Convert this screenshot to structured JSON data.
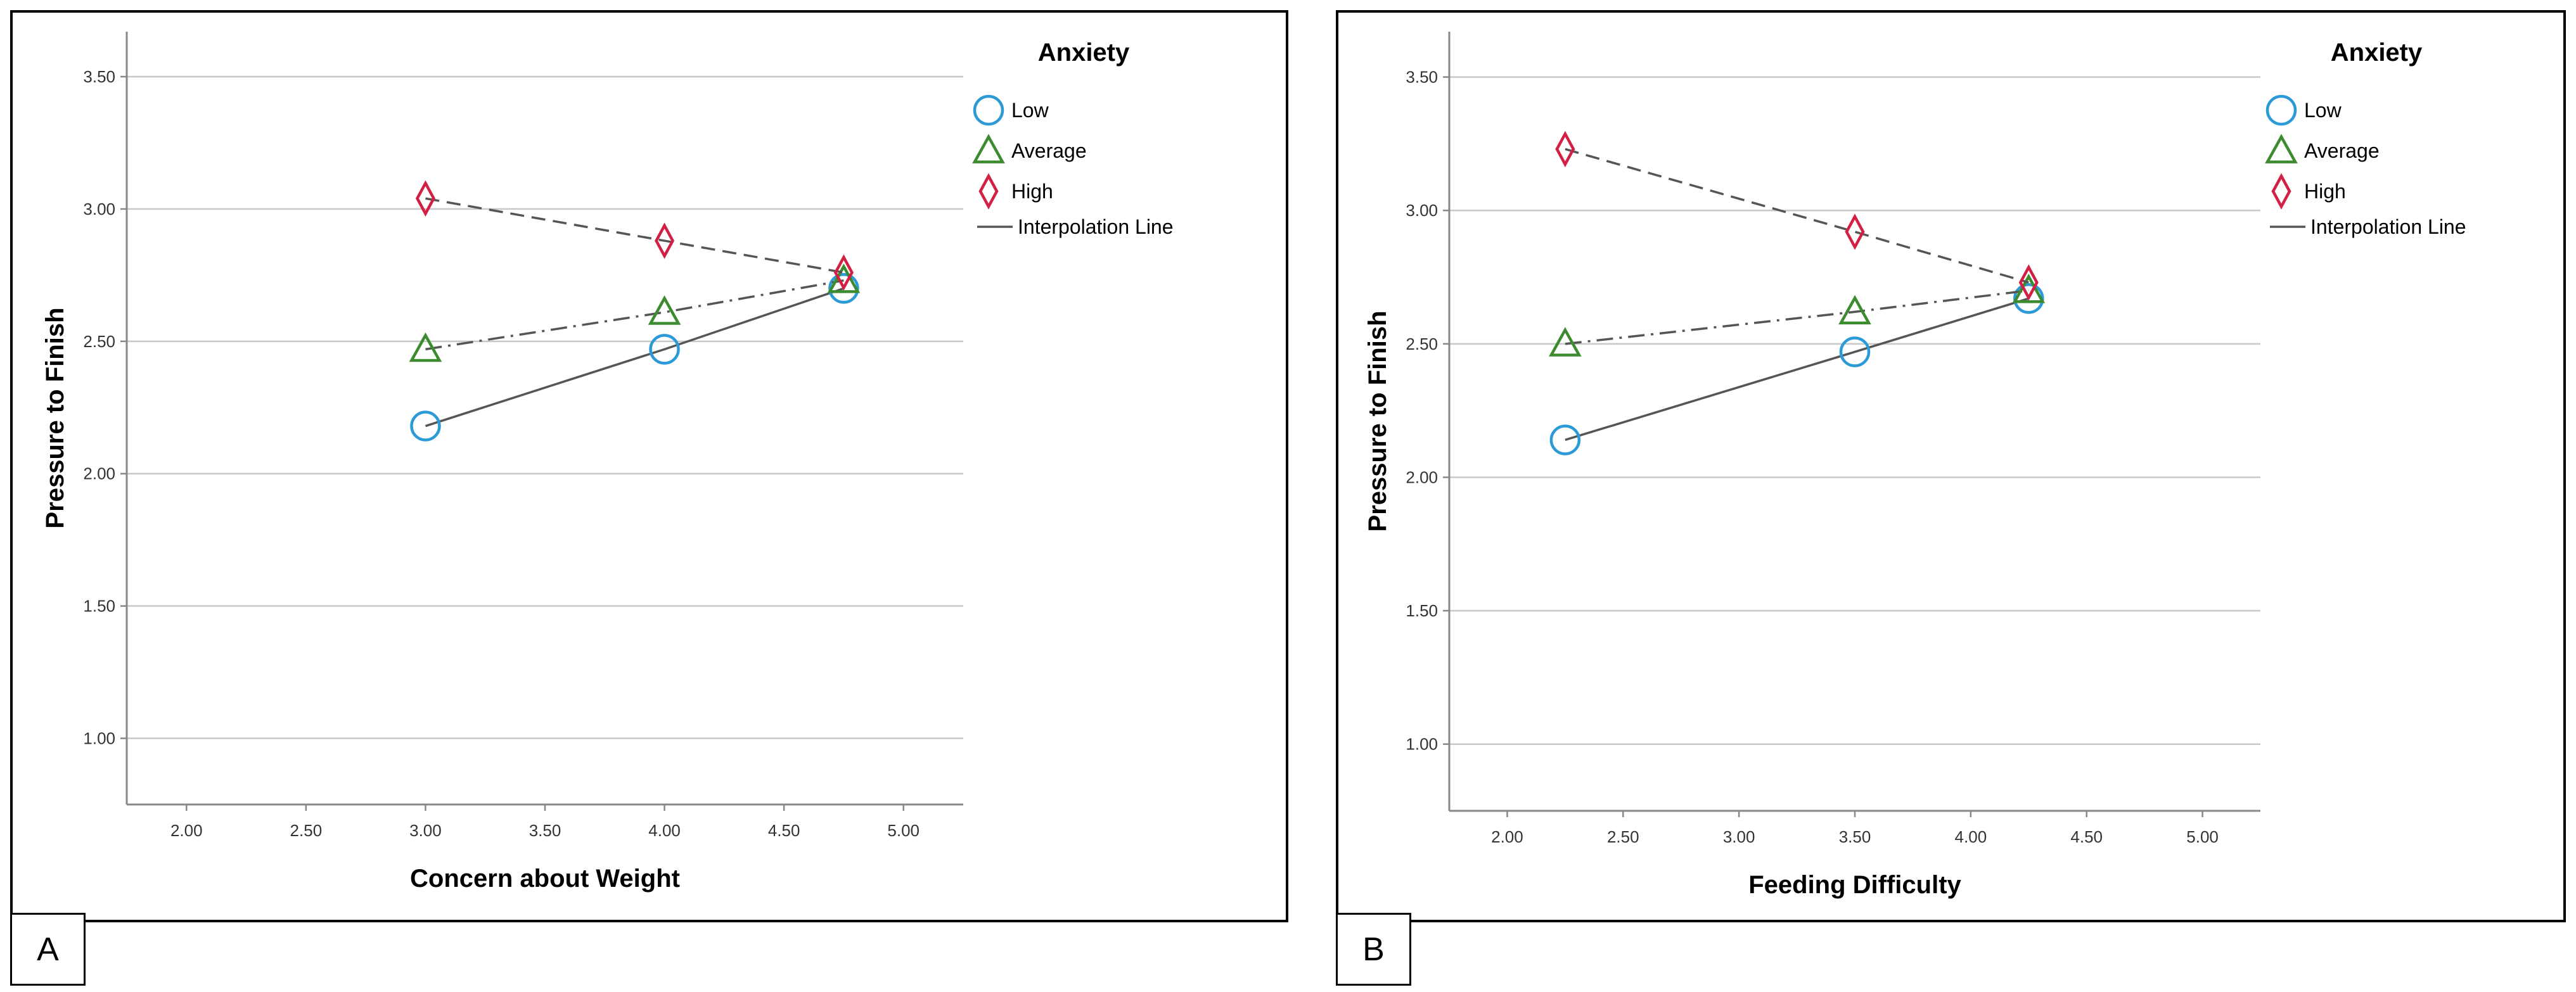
{
  "colors": {
    "low": "#2c9ad6",
    "average": "#3d8b2f",
    "high": "#d41f45",
    "line": "#555555",
    "grid": "#c8c8c8",
    "axis": "#888888"
  },
  "chart_data": [
    {
      "panel_label": "A",
      "type": "line",
      "xlabel": "Concern about Weight",
      "ylabel": "Pressure to Finish",
      "xlim": [
        1.75,
        5.25
      ],
      "ylim": [
        0.75,
        3.67
      ],
      "x_ticks": [
        2.0,
        2.5,
        3.0,
        3.5,
        4.0,
        4.5,
        5.0
      ],
      "x_tick_labels": [
        "2.00",
        "2.50",
        "3.00",
        "3.50",
        "4.00",
        "4.50",
        "5.00"
      ],
      "y_ticks": [
        1.0,
        1.5,
        2.0,
        2.5,
        3.0,
        3.5
      ],
      "y_tick_labels": [
        "1.00",
        "1.50",
        "2.00",
        "2.50",
        "3.00",
        "3.50"
      ],
      "grid": "horizontal",
      "legend": {
        "title": "Anxiety",
        "position": "top-right",
        "items": [
          {
            "key": "low",
            "label": "Low"
          },
          {
            "key": "average",
            "label": "Average"
          },
          {
            "key": "high",
            "label": "High"
          },
          {
            "key": "line",
            "label": "Interpolation Line"
          }
        ]
      },
      "x": [
        3.0,
        4.0,
        4.75
      ],
      "series": [
        {
          "key": "low",
          "name": "Low",
          "marker": "circle",
          "dash": "solid",
          "values": [
            2.18,
            2.47,
            2.7
          ]
        },
        {
          "key": "average",
          "name": "Average",
          "marker": "triangle",
          "dash": "dashdot",
          "values": [
            2.47,
            2.61,
            2.73
          ]
        },
        {
          "key": "high",
          "name": "High",
          "marker": "diamond",
          "dash": "dashed",
          "values": [
            3.04,
            2.88,
            2.76
          ]
        }
      ]
    },
    {
      "panel_label": "B",
      "type": "line",
      "xlabel": "Feeding Difficulty",
      "ylabel": "Pressure to Finish",
      "xlim": [
        1.75,
        5.25
      ],
      "ylim": [
        0.75,
        3.67
      ],
      "x_ticks": [
        2.0,
        2.5,
        3.0,
        3.5,
        4.0,
        4.5,
        5.0
      ],
      "x_tick_labels": [
        "2.00",
        "2.50",
        "3.00",
        "3.50",
        "4.00",
        "4.50",
        "5.00"
      ],
      "y_ticks": [
        1.0,
        1.5,
        2.0,
        2.5,
        3.0,
        3.5
      ],
      "y_tick_labels": [
        "1.00",
        "1.50",
        "2.00",
        "2.50",
        "3.00",
        "3.50"
      ],
      "grid": "horizontal",
      "legend": {
        "title": "Anxiety",
        "position": "top-right",
        "items": [
          {
            "key": "low",
            "label": "Low"
          },
          {
            "key": "average",
            "label": "Average"
          },
          {
            "key": "high",
            "label": "High"
          },
          {
            "key": "line",
            "label": "Interpolation Line"
          }
        ]
      },
      "x": [
        2.25,
        3.5,
        4.25
      ],
      "series": [
        {
          "key": "low",
          "name": "Low",
          "marker": "circle",
          "dash": "solid",
          "values": [
            2.14,
            2.47,
            2.67
          ]
        },
        {
          "key": "average",
          "name": "Average",
          "marker": "triangle",
          "dash": "dashdot",
          "values": [
            2.5,
            2.62,
            2.7
          ]
        },
        {
          "key": "high",
          "name": "High",
          "marker": "diamond",
          "dash": "dashed",
          "values": [
            3.23,
            2.92,
            2.73
          ]
        }
      ]
    }
  ]
}
